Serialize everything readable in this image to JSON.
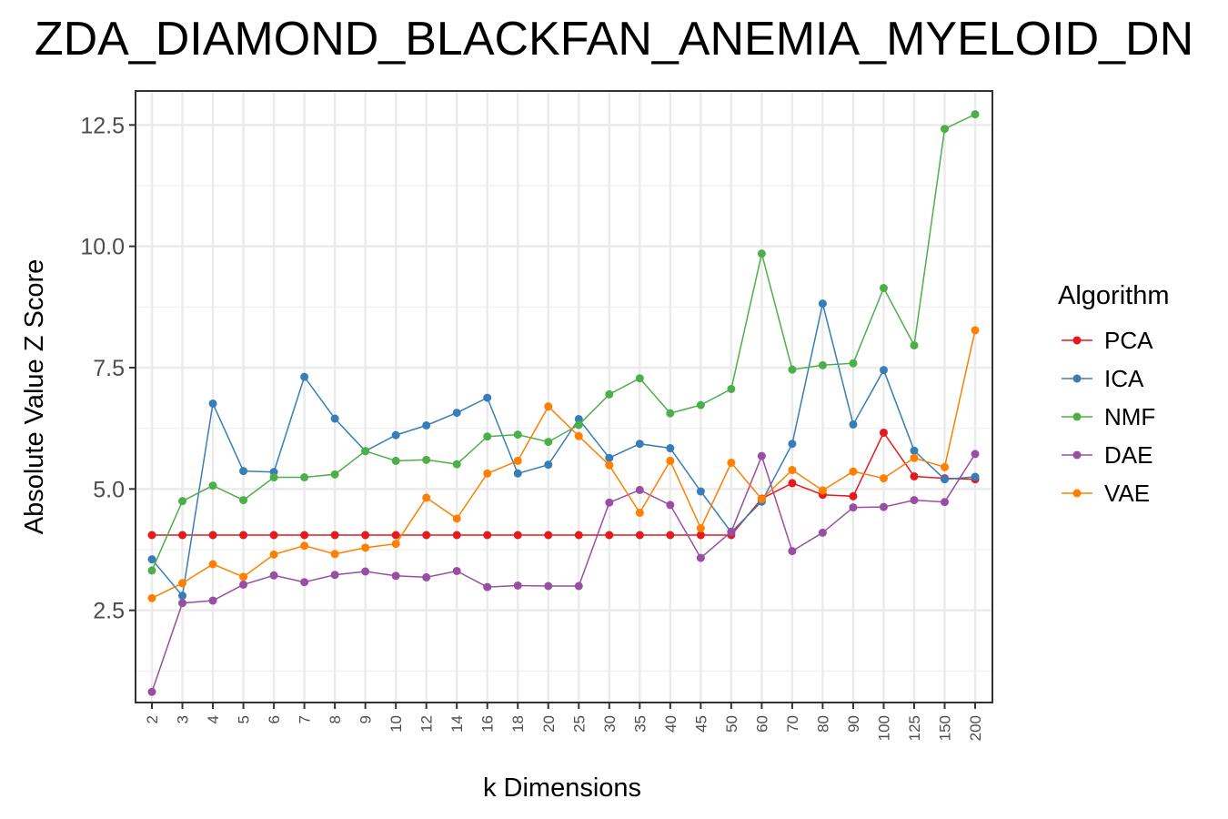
{
  "chart_data": {
    "type": "line",
    "title": "ZDA_DIAMOND_BLACKFAN_ANEMIA_MYELOID_DN",
    "xlabel": "k Dimensions",
    "ylabel": "Absolute Value Z Score",
    "categories": [
      "2",
      "3",
      "4",
      "5",
      "6",
      "7",
      "8",
      "9",
      "10",
      "12",
      "14",
      "16",
      "18",
      "20",
      "25",
      "30",
      "35",
      "40",
      "45",
      "50",
      "60",
      "70",
      "80",
      "90",
      "100",
      "125",
      "150",
      "200"
    ],
    "ylim": [
      0.6,
      13.2
    ],
    "yticks": [
      2.5,
      5.0,
      7.5,
      10.0,
      12.5
    ],
    "ytick_labels": [
      "2.5",
      "5.0",
      "7.5",
      "10.0",
      "12.5"
    ],
    "grid": true,
    "legend": {
      "title": "Algorithm",
      "position": "right"
    },
    "series": [
      {
        "name": "PCA",
        "color": "#e41a1c",
        "values": [
          4.05,
          4.05,
          4.05,
          4.05,
          4.05,
          4.05,
          4.05,
          4.05,
          4.05,
          4.05,
          4.05,
          4.05,
          4.05,
          4.05,
          4.05,
          4.05,
          4.05,
          4.05,
          4.05,
          4.05,
          4.8,
          5.12,
          4.88,
          4.85,
          6.16,
          5.26,
          5.22,
          5.2
        ]
      },
      {
        "name": "ICA",
        "color": "#377eb8",
        "values": [
          3.55,
          2.8,
          6.76,
          5.37,
          5.35,
          7.31,
          6.45,
          5.78,
          6.11,
          6.31,
          6.57,
          6.88,
          5.32,
          5.5,
          6.44,
          5.64,
          5.93,
          5.84,
          4.95,
          4.11,
          4.74,
          5.93,
          8.82,
          6.33,
          7.45,
          5.79,
          5.2,
          5.25
        ]
      },
      {
        "name": "NMF",
        "color": "#4daf4a",
        "values": [
          3.32,
          4.75,
          5.07,
          4.77,
          5.24,
          5.24,
          5.3,
          5.78,
          5.58,
          5.6,
          5.51,
          6.08,
          6.12,
          5.97,
          6.32,
          6.95,
          7.28,
          6.56,
          6.73,
          7.06,
          9.85,
          7.46,
          7.55,
          7.59,
          9.14,
          7.96,
          12.42,
          12.72
        ]
      },
      {
        "name": "DAE",
        "color": "#984ea3",
        "values": [
          0.82,
          2.65,
          2.7,
          3.03,
          3.22,
          3.08,
          3.23,
          3.3,
          3.21,
          3.18,
          3.31,
          2.98,
          3.01,
          3.0,
          3.0,
          4.72,
          4.98,
          4.67,
          3.58,
          4.12,
          5.68,
          3.72,
          4.1,
          4.62,
          4.63,
          4.77,
          4.73,
          5.72
        ]
      },
      {
        "name": "VAE",
        "color": "#ff7f00",
        "values": [
          2.75,
          3.06,
          3.45,
          3.19,
          3.65,
          3.83,
          3.66,
          3.79,
          3.87,
          4.82,
          4.39,
          5.32,
          5.58,
          6.7,
          6.09,
          5.49,
          4.51,
          5.58,
          4.19,
          5.54,
          4.79,
          5.39,
          4.97,
          5.36,
          5.22,
          5.64,
          5.45,
          8.27
        ]
      }
    ]
  }
}
